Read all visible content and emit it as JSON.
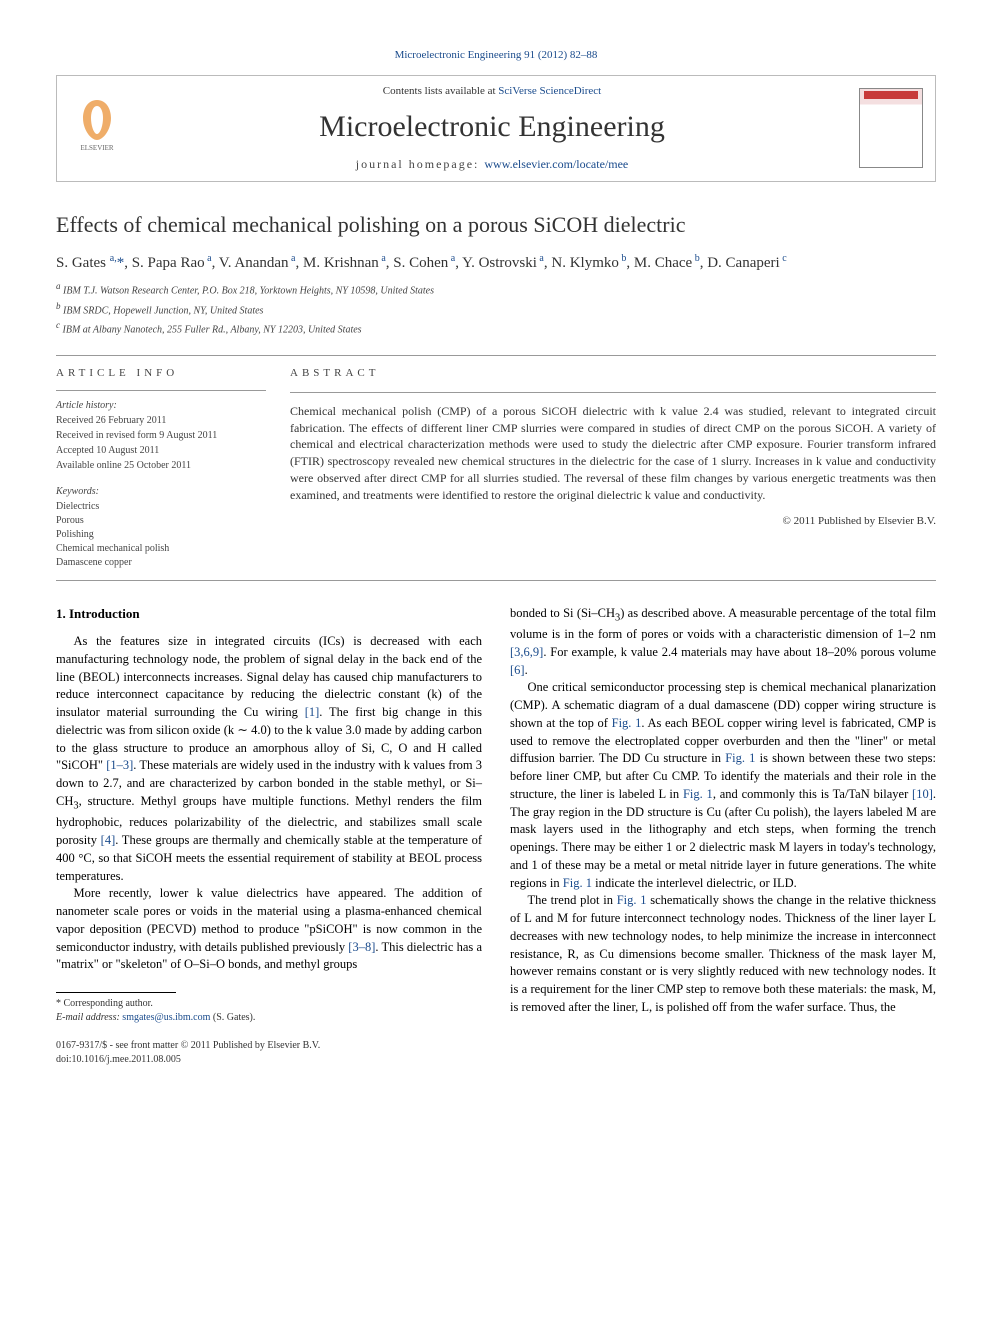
{
  "header": {
    "top_link": "Microelectronic Engineering 91 (2012) 82–88",
    "contents_prefix": "Contents lists available at ",
    "contents_link": "SciVerse ScienceDirect",
    "journal_name": "Microelectronic Engineering",
    "homepage_prefix": "journal homepage: ",
    "homepage_link": "www.elsevier.com/locate/mee",
    "publisher_label": "ELSEVIER"
  },
  "title": "Effects of chemical mechanical polishing on a porous SiCOH dielectric",
  "authors_html": "S. Gates <sup>a,</sup><span class='star'>*</span>, S. Papa Rao<sup> a</sup>, V. Anandan<sup> a</sup>, M. Krishnan<sup> a</sup>, S. Cohen<sup> a</sup>, Y. Ostrovski<sup> a</sup>, N. Klymko<sup> b</sup>, M. Chace<sup> b</sup>, D. Canaperi<sup> c</sup>",
  "affiliations": [
    {
      "sup": "a",
      "text": "IBM T.J. Watson Research Center, P.O. Box 218, Yorktown Heights, NY 10598, United States"
    },
    {
      "sup": "b",
      "text": "IBM SRDC, Hopewell Junction, NY, United States"
    },
    {
      "sup": "c",
      "text": "IBM at Albany Nanotech, 255 Fuller Rd., Albany, NY 12203, United States"
    }
  ],
  "article_info": {
    "label": "ARTICLE INFO",
    "history_label": "Article history:",
    "history": [
      "Received 26 February 2011",
      "Received in revised form 9 August 2011",
      "Accepted 10 August 2011",
      "Available online 25 October 2011"
    ],
    "keywords_label": "Keywords:",
    "keywords": [
      "Dielectrics",
      "Porous",
      "Polishing",
      "Chemical mechanical polish",
      "Damascene copper"
    ]
  },
  "abstract": {
    "label": "ABSTRACT",
    "text": "Chemical mechanical polish (CMP) of a porous SiCOH dielectric with k value 2.4 was studied, relevant to integrated circuit fabrication. The effects of different liner CMP slurries were compared in studies of direct CMP on the porous SiCOH. A variety of chemical and electrical characterization methods were used to study the dielectric after CMP exposure. Fourier transform infrared (FTIR) spectroscopy revealed new chemical structures in the dielectric for the case of 1 slurry. Increases in k value and conductivity were observed after direct CMP for all slurries studied. The reversal of these film changes by various energetic treatments was then examined, and treatments were identified to restore the original dielectric k value and conductivity.",
    "copyright": "© 2011 Published by Elsevier B.V."
  },
  "body": {
    "intro_heading": "1. Introduction",
    "col1": [
      "As the features size in integrated circuits (ICs) is decreased with each manufacturing technology node, the problem of signal delay in the back end of the line (BEOL) interconnects increases. Signal delay has caused chip manufacturers to reduce interconnect capacitance by reducing the dielectric constant (k) of the insulator material surrounding the Cu wiring <span class='ref-link'>[1]</span>. The first big change in this dielectric was from silicon oxide (k ∼ 4.0) to the k value 3.0 made by adding carbon to the glass structure to produce an amorphous alloy of Si, C, O and H called \"SiCOH\" <span class='ref-link'>[1–3]</span>. These materials are widely used in the industry with k values from 3 down to 2.7, and are characterized by carbon bonded in the stable methyl, or Si–CH<sub>3</sub>, structure. Methyl groups have multiple functions. Methyl renders the film hydrophobic, reduces polarizability of the dielectric, and stabilizes small scale porosity <span class='ref-link'>[4]</span>. These groups are thermally and chemically stable at the temperature of 400 °C, so that SiCOH meets the essential requirement of stability at BEOL process temperatures.",
      "More recently, lower k value dielectrics have appeared. The addition of nanometer scale pores or voids in the material using a plasma-enhanced chemical vapor deposition (PECVD) method to produce \"pSiCOH\" is now common in the semiconductor industry, with details published previously <span class='ref-link'>[3–8]</span>. This dielectric has a \"matrix\" or \"skeleton\" of O–Si–O bonds, and methyl groups"
    ],
    "col2": [
      "bonded to Si (Si–CH<sub>3</sub>) as described above. A measurable percentage of the total film volume is in the form of pores or voids with a characteristic dimension of 1–2 nm <span class='ref-link'>[3,6,9]</span>. For example, k value 2.4 materials may have about 18–20% porous volume <span class='ref-link'>[6]</span>.",
      "One critical semiconductor processing step is chemical mechanical planarization (CMP). A schematic diagram of a dual damascene (DD) copper wiring structure is shown at the top of <span class='ref-link'>Fig. 1</span>. As each BEOL copper wiring level is fabricated, CMP is used to remove the electroplated copper overburden and then the \"liner\" or metal diffusion barrier. The DD Cu structure in <span class='ref-link'>Fig. 1</span> is shown between these two steps: before liner CMP, but after Cu CMP. To identify the materials and their role in the structure, the liner is labeled L in <span class='ref-link'>Fig. 1</span>, and commonly this is Ta/TaN bilayer <span class='ref-link'>[10]</span>. The gray region in the DD structure is Cu (after Cu polish), the layers labeled M are mask layers used in the lithography and etch steps, when forming the trench openings. There may be either 1 or 2 dielectric mask M layers in today's technology, and 1 of these may be a metal or metal nitride layer in future generations. The white regions in <span class='ref-link'>Fig. 1</span> indicate the interlevel dielectric, or ILD.",
      "The trend plot in <span class='ref-link'>Fig. 1</span> schematically shows the change in the relative thickness of L and M for future interconnect technology nodes. Thickness of the liner layer L decreases with new technology nodes, to help minimize the increase in interconnect resistance, R, as Cu dimensions become smaller. Thickness of the mask layer M, however remains constant or is very slightly reduced with new technology nodes. It is a requirement for the liner CMP step to remove both these materials: the mask, M, is removed after the liner, L, is polished off from the wafer surface. Thus, the"
    ]
  },
  "footnote": {
    "corresponding": "* Corresponding author.",
    "email_label": "E-mail address: ",
    "email": "smgates@us.ibm.com",
    "email_suffix": " (S. Gates)."
  },
  "footer": {
    "line1": "0167-9317/$ - see front matter © 2011 Published by Elsevier B.V.",
    "line2": "doi:10.1016/j.mee.2011.08.005"
  }
}
